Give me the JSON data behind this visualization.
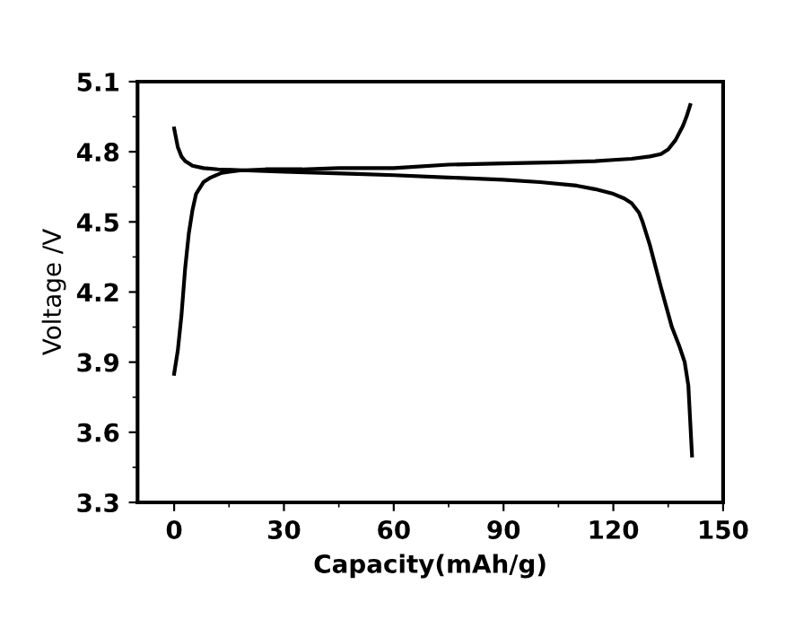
{
  "chart_data": {
    "type": "line",
    "xlabel": "Capacity(mAh/g)",
    "ylabel": "Voltage /V",
    "xlim": [
      -10,
      150
    ],
    "xticks": [
      0,
      30,
      60,
      90,
      120,
      150
    ],
    "ylim": [
      3.3,
      5.1
    ],
    "yticks": [
      3.3,
      3.6,
      3.9,
      4.2,
      4.5,
      4.8,
      5.1
    ],
    "grid": false,
    "legend": false,
    "line_style": "solid",
    "marker": "none",
    "series": [
      {
        "color": "#000000",
        "x": [
          0,
          1,
          2,
          3,
          4,
          5,
          6,
          8,
          10,
          13,
          18,
          25,
          35,
          45,
          60,
          75,
          90,
          105,
          115,
          120,
          125,
          130,
          133,
          135,
          137,
          139,
          140,
          141
        ],
        "values": [
          3.85,
          3.95,
          4.1,
          4.3,
          4.45,
          4.55,
          4.62,
          4.67,
          4.69,
          4.71,
          4.72,
          4.725,
          4.725,
          4.73,
          4.73,
          4.745,
          4.75,
          4.755,
          4.76,
          4.765,
          4.77,
          4.78,
          4.79,
          4.81,
          4.85,
          4.91,
          4.95,
          5.0
        ]
      },
      {
        "color": "#000000",
        "x": [
          0,
          0.5,
          1,
          2,
          3,
          5,
          8,
          12,
          20,
          30,
          40,
          50,
          60,
          75,
          90,
          100,
          110,
          115,
          120,
          123,
          125,
          127,
          128,
          130,
          133,
          136,
          138,
          139.5,
          140.5,
          141,
          141.5
        ],
        "values": [
          4.9,
          4.86,
          4.82,
          4.78,
          4.76,
          4.74,
          4.73,
          4.725,
          4.72,
          4.715,
          4.71,
          4.705,
          4.7,
          4.69,
          4.68,
          4.67,
          4.655,
          4.64,
          4.62,
          4.6,
          4.58,
          4.54,
          4.5,
          4.4,
          4.22,
          4.05,
          3.97,
          3.9,
          3.8,
          3.65,
          3.5
        ]
      }
    ]
  }
}
